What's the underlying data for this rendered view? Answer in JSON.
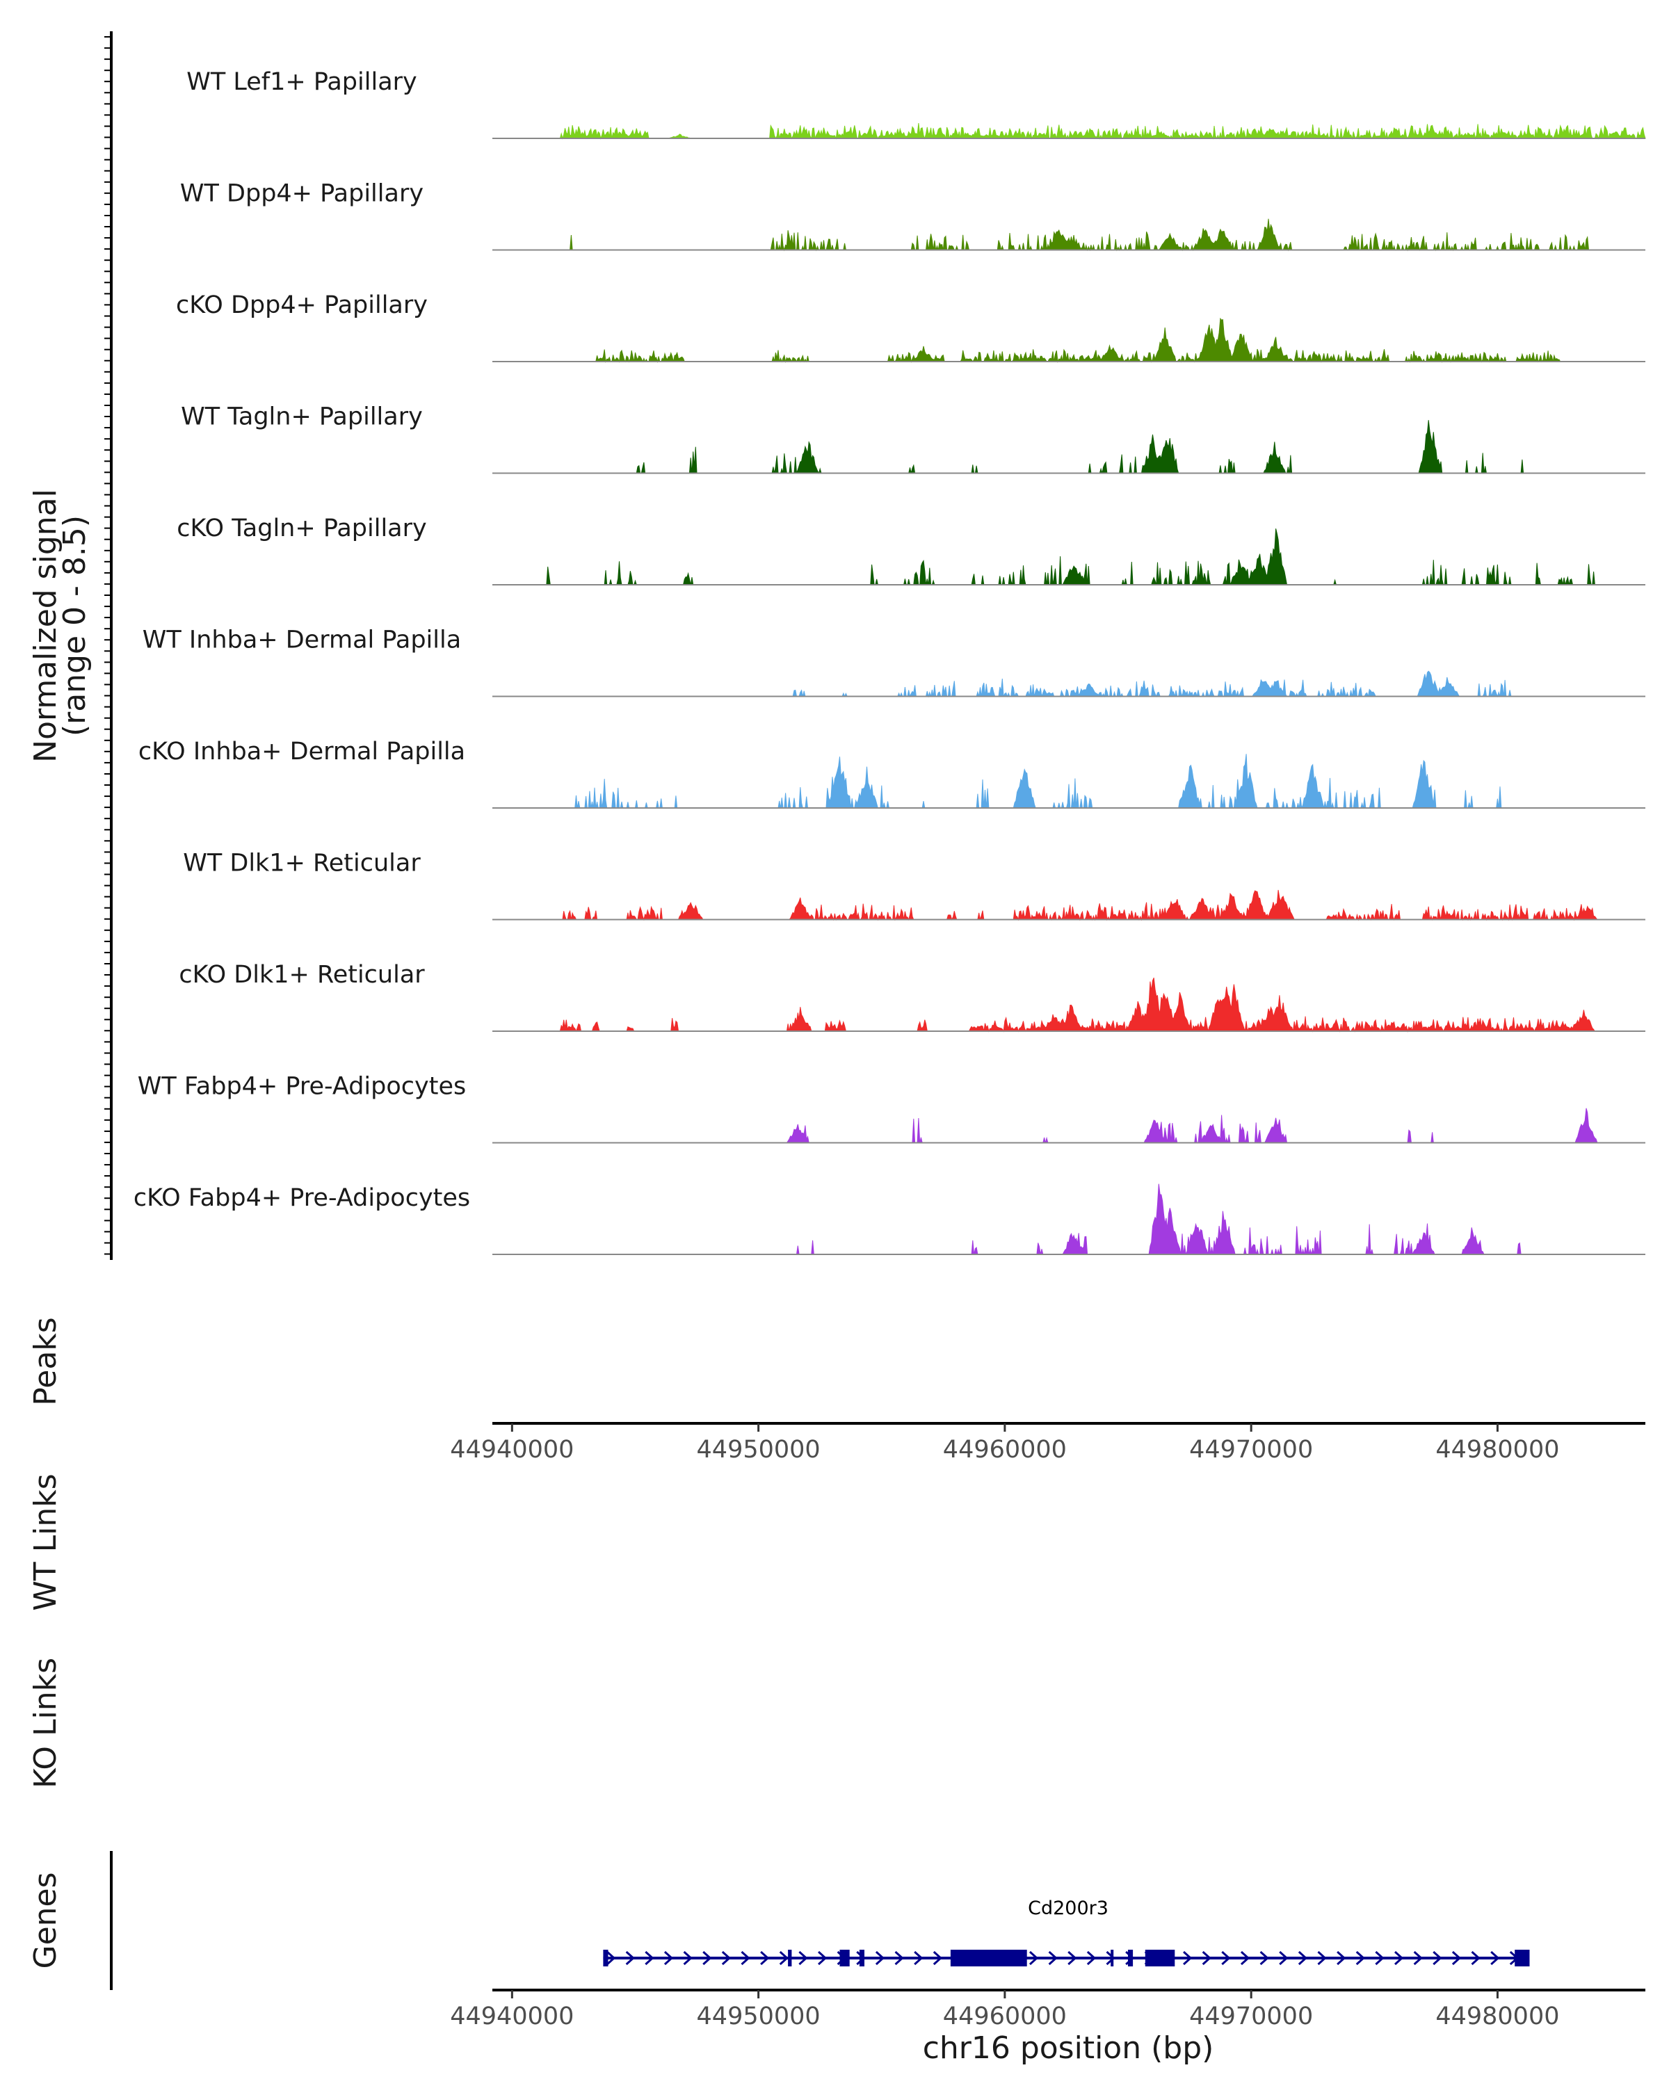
{
  "chart_data": {
    "type": "area",
    "title": "",
    "chromosome_label": "chr16 position (bp)",
    "xlim": [
      44939200,
      44986000
    ],
    "x_ticks": [
      44940000,
      44950000,
      44960000,
      44970000,
      44980000
    ],
    "x_tick_labels": [
      "44940000",
      "44950000",
      "44960000",
      "44970000",
      "44980000"
    ],
    "signal_axis": {
      "label_line1": "Normalized signal",
      "label_line2": "(range 0 - 8.5)",
      "range": [
        0,
        8.5
      ]
    },
    "panel_labels": {
      "peaks": "Peaks",
      "wt_links": "WT Links",
      "ko_links": "KO Links",
      "genes": "Genes"
    },
    "tracks": [
      {
        "name": "WT Lef1+ Papillary",
        "color": "#7cd11c",
        "density": 0.9,
        "baseline": 0.7,
        "regions": [
          [
            44942000,
            44945500
          ],
          [
            44950500,
            44986000
          ]
        ],
        "peaks": [
          [
            44946800,
            0.35
          ],
          [
            44956300,
            0.55
          ],
          [
            44966300,
            0.6
          ],
          [
            44970800,
            1.0
          ],
          [
            44977300,
            0.85
          ],
          [
            44963400,
            0.4
          ],
          [
            44953600,
            0.35
          ]
        ]
      },
      {
        "name": "WT Dpp4+ Papillary",
        "color": "#4d8a00",
        "density": 0.45,
        "baseline": 0.9,
        "regions": [
          [
            44942100,
            44942500
          ],
          [
            44950500,
            44953500
          ],
          [
            44956200,
            44958500
          ],
          [
            44959700,
            44971600
          ],
          [
            44973800,
            44984000
          ]
        ],
        "peaks": [
          [
            44962200,
            2.2
          ],
          [
            44966700,
            1.6
          ],
          [
            44968100,
            2.0
          ],
          [
            44968800,
            2.1
          ],
          [
            44970700,
            2.9
          ],
          [
            44962700,
            1.2
          ]
        ]
      },
      {
        "name": "cKO Dpp4+ Papillary",
        "color": "#4d8a00",
        "density": 0.8,
        "baseline": 0.6,
        "regions": [
          [
            44943300,
            44947000
          ],
          [
            44950600,
            44952000
          ],
          [
            44955300,
            44957500
          ],
          [
            44958200,
            44962100
          ],
          [
            44962200,
            44975600
          ],
          [
            44976300,
            44980300
          ],
          [
            44980800,
            44982500
          ]
        ],
        "peaks": [
          [
            44966500,
            3.0
          ],
          [
            44968300,
            3.5
          ],
          [
            44968800,
            4.3
          ],
          [
            44969600,
            3.0
          ],
          [
            44971000,
            2.2
          ],
          [
            44964300,
            1.5
          ],
          [
            44956700,
            1.4
          ]
        ]
      },
      {
        "name": "WT Tagln+ Papillary",
        "color": "#0f5c00",
        "density": 0.25,
        "baseline": 1.4,
        "regions": [
          [
            44945000,
            44945500
          ],
          [
            44947000,
            44947500
          ],
          [
            44950500,
            44952600
          ],
          [
            44956100,
            44956600
          ],
          [
            44958700,
            44959000
          ],
          [
            44963400,
            44967200
          ],
          [
            44968700,
            44969400
          ],
          [
            44970700,
            44971600
          ],
          [
            44977000,
            44977800
          ],
          [
            44978700,
            44979500
          ],
          [
            44980900,
            44981100
          ]
        ],
        "peaks": [
          [
            44952000,
            3.0
          ],
          [
            44966000,
            3.2
          ],
          [
            44966600,
            4.0
          ],
          [
            44970950,
            2.6
          ],
          [
            44977250,
            5.4
          ]
        ]
      },
      {
        "name": "cKO Tagln+ Papillary",
        "color": "#0f5c00",
        "density": 0.45,
        "baseline": 1.3,
        "regions": [
          [
            44941200,
            44941500
          ],
          [
            44943800,
            44945000
          ],
          [
            44947000,
            44947300
          ],
          [
            44954600,
            44954900
          ],
          [
            44955700,
            44957100
          ],
          [
            44958700,
            44959100
          ],
          [
            44959800,
            44960800
          ],
          [
            44961500,
            44962300
          ],
          [
            44962600,
            44963600
          ],
          [
            44964800,
            44965200
          ],
          [
            44965900,
            44966300
          ],
          [
            44966500,
            44966800
          ],
          [
            44967000,
            44968300
          ],
          [
            44968800,
            44971400
          ],
          [
            44973300,
            44973500
          ],
          [
            44977000,
            44977900
          ],
          [
            44978600,
            44979200
          ],
          [
            44979600,
            44980000
          ],
          [
            44980300,
            44980500
          ],
          [
            44981500,
            44981800
          ],
          [
            44982500,
            44983000
          ],
          [
            44983500,
            44983900
          ]
        ],
        "peaks": [
          [
            44971000,
            5.0
          ],
          [
            44970300,
            3.0
          ],
          [
            44962800,
            2.0
          ],
          [
            44969600,
            2.2
          ]
        ]
      },
      {
        "name": "WT Inhba+ Dermal Papilla",
        "color": "#5aa8e6",
        "density": 0.5,
        "baseline": 0.8,
        "regions": [
          [
            44951400,
            44951900
          ],
          [
            44953400,
            44953600
          ],
          [
            44955700,
            44958000
          ],
          [
            44958900,
            44960500
          ],
          [
            44960900,
            44962000
          ],
          [
            44962300,
            44966300
          ],
          [
            44966700,
            44969700
          ],
          [
            44970300,
            44972200
          ],
          [
            44972700,
            44975000
          ],
          [
            44977000,
            44978400
          ],
          [
            44979200,
            44980500
          ]
        ],
        "peaks": [
          [
            44977200,
            2.8
          ],
          [
            44978000,
            1.8
          ],
          [
            44970500,
            1.8
          ],
          [
            44971000,
            1.5
          ],
          [
            44963400,
            1.2
          ]
        ]
      },
      {
        "name": "cKO Inhba+ Dermal Papilla",
        "color": "#5aa8e6",
        "density": 0.35,
        "baseline": 1.5,
        "regions": [
          [
            44942600,
            44946800
          ],
          [
            44950800,
            44955400
          ],
          [
            44956500,
            44956700
          ],
          [
            44958900,
            44959400
          ],
          [
            44960800,
            44961000
          ],
          [
            44961900,
            44963500
          ],
          [
            44967100,
            44969800
          ],
          [
            44970600,
            44975200
          ],
          [
            44977000,
            44977600
          ],
          [
            44978700,
            44979000
          ],
          [
            44980000,
            44980100
          ]
        ],
        "peaks": [
          [
            44953300,
            4.8
          ],
          [
            44969800,
            4.6
          ],
          [
            44977000,
            4.7
          ],
          [
            44960800,
            4.0
          ],
          [
            44967500,
            4.0
          ],
          [
            44972500,
            4.0
          ],
          [
            44954400,
            3.5
          ]
        ]
      },
      {
        "name": "WT Dlk1+ Reticular",
        "color": "#ef2b2b",
        "density": 0.75,
        "baseline": 0.8,
        "regions": [
          [
            44942100,
            44942600
          ],
          [
            44943000,
            44943400
          ],
          [
            44944700,
            44946100
          ],
          [
            44946800,
            44947300
          ],
          [
            44951400,
            44956300
          ],
          [
            44957700,
            44958000
          ],
          [
            44958900,
            44959100
          ],
          [
            44960400,
            44965200
          ],
          [
            44965200,
            44971700
          ],
          [
            44973100,
            44976000
          ],
          [
            44977000,
            44979200
          ],
          [
            44979400,
            44983900
          ]
        ],
        "peaks": [
          [
            44947300,
            1.8
          ],
          [
            44951700,
            1.8
          ],
          [
            44966900,
            2.3
          ],
          [
            44969200,
            2.5
          ],
          [
            44970200,
            3.0
          ],
          [
            44971100,
            2.6
          ],
          [
            44971300,
            2.2
          ],
          [
            44968000,
            1.9
          ],
          [
            44983600,
            1.3
          ]
        ]
      },
      {
        "name": "cKO Dlk1+ Reticular",
        "color": "#ef2b2b",
        "density": 0.9,
        "baseline": 0.7,
        "regions": [
          [
            44942000,
            44942800
          ],
          [
            44943300,
            44943500
          ],
          [
            44944700,
            44944900
          ],
          [
            44946500,
            44946700
          ],
          [
            44951200,
            44952100
          ],
          [
            44952700,
            44953500
          ],
          [
            44956500,
            44956800
          ],
          [
            44958600,
            44960500
          ],
          [
            44960600,
            44983700
          ]
        ],
        "peaks": [
          [
            44962000,
            1.8
          ],
          [
            44962700,
            2.5
          ],
          [
            44965400,
            2.5
          ],
          [
            44966000,
            5.3
          ],
          [
            44966500,
            4.5
          ],
          [
            44967100,
            3.5
          ],
          [
            44968700,
            3.5
          ],
          [
            44969000,
            5.2
          ],
          [
            44969300,
            4.2
          ],
          [
            44970800,
            2.8
          ],
          [
            44971200,
            3.3
          ],
          [
            44951700,
            2.0
          ],
          [
            44983500,
            2.0
          ]
        ]
      },
      {
        "name": "WT Fabp4+ Pre-Adipocytes",
        "color": "#a23be0",
        "density": 0.35,
        "baseline": 1.4,
        "regions": [
          [
            44951500,
            44952000
          ],
          [
            44956200,
            44956600
          ],
          [
            44961500,
            44961700
          ],
          [
            44966000,
            44967000
          ],
          [
            44967500,
            44968500
          ],
          [
            44968800,
            44970400
          ],
          [
            44970700,
            44971400
          ],
          [
            44976300,
            44976500
          ],
          [
            44977100,
            44977400
          ],
          [
            44983600,
            44983700
          ]
        ],
        "peaks": [
          [
            44983600,
            2.9
          ],
          [
            44966100,
            2.1
          ],
          [
            44971000,
            2.1
          ],
          [
            44951600,
            2.0
          ],
          [
            44968400,
            1.8
          ]
        ]
      },
      {
        "name": "cKO Fabp4+ Pre-Adipocytes",
        "color": "#a23be0",
        "density": 0.5,
        "baseline": 1.5,
        "regions": [
          [
            44951600,
            44951700
          ],
          [
            44952100,
            44952200
          ],
          [
            44958700,
            44958900
          ],
          [
            44961300,
            44961500
          ],
          [
            44962600,
            44963300
          ],
          [
            44965800,
            44969200
          ],
          [
            44969600,
            44971200
          ],
          [
            44971700,
            44973100
          ],
          [
            44974700,
            44975000
          ],
          [
            44975800,
            44977300
          ],
          [
            44978600,
            44979300
          ],
          [
            44980800,
            44980900
          ]
        ],
        "peaks": [
          [
            44966300,
            7.3
          ],
          [
            44966700,
            4.5
          ],
          [
            44968900,
            4.3
          ],
          [
            44967800,
            3.5
          ],
          [
            44962800,
            2.3
          ],
          [
            44977000,
            2.3
          ],
          [
            44979000,
            2.2
          ]
        ]
      }
    ],
    "gene": {
      "name": "Cd200r3",
      "strand": "+",
      "span": [
        44943700,
        44981300
      ],
      "color": "#00008b",
      "exons": [
        [
          44943700,
          44943900
        ],
        [
          44951200,
          44951350
        ],
        [
          44953300,
          44953700
        ],
        [
          44954100,
          44954300
        ],
        [
          44957800,
          44960900
        ],
        [
          44964300,
          44964400
        ],
        [
          44965000,
          44965200
        ],
        [
          44965700,
          44966900
        ],
        [
          44980700,
          44981300
        ]
      ]
    }
  }
}
